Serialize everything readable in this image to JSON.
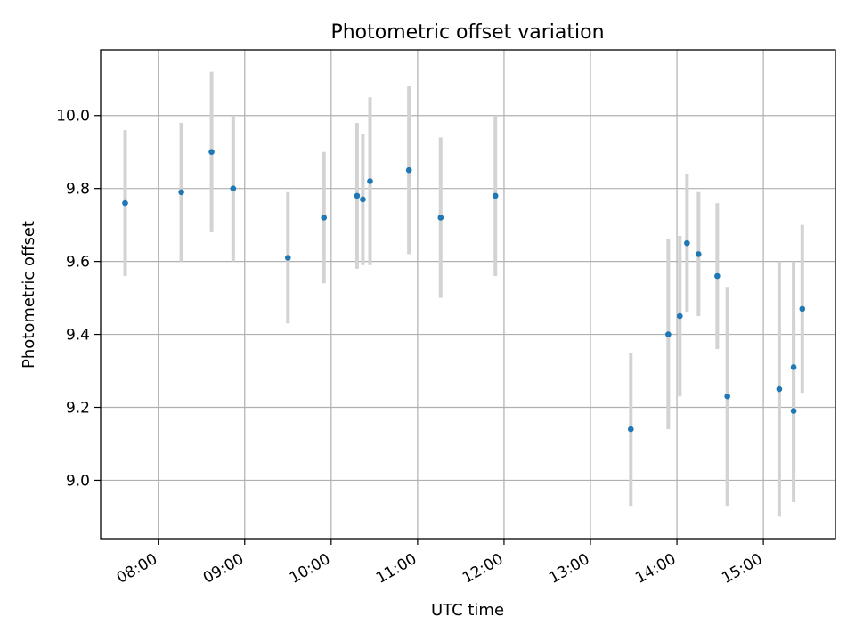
{
  "chart_data": {
    "type": "scatter",
    "title": "Photometric offset variation",
    "xlabel": "UTC time",
    "ylabel": "Photometric offset",
    "xlim": [
      "07:20",
      "15:50"
    ],
    "ylim": [
      8.84,
      10.18
    ],
    "grid": true,
    "x_ticks": [
      "08:00",
      "09:00",
      "10:00",
      "11:00",
      "12:00",
      "13:00",
      "14:00",
      "15:00"
    ],
    "y_ticks": [
      "9.0",
      "9.2",
      "9.4",
      "9.6",
      "9.8",
      "10.0"
    ],
    "point_color": "#1f77b4",
    "errorbar_color": "#d3d3d3",
    "points": [
      {
        "x": "07:37",
        "y": 9.76,
        "err": 0.2
      },
      {
        "x": "08:16",
        "y": 9.79,
        "err": 0.19
      },
      {
        "x": "08:37",
        "y": 9.9,
        "err": 0.22
      },
      {
        "x": "08:52",
        "y": 9.8,
        "err": 0.2
      },
      {
        "x": "09:30",
        "y": 9.61,
        "err": 0.18
      },
      {
        "x": "09:55",
        "y": 9.72,
        "err": 0.18
      },
      {
        "x": "10:18",
        "y": 9.78,
        "err": 0.2
      },
      {
        "x": "10:22",
        "y": 9.77,
        "err": 0.18
      },
      {
        "x": "10:27",
        "y": 9.82,
        "err": 0.23
      },
      {
        "x": "10:54",
        "y": 9.85,
        "err": 0.23
      },
      {
        "x": "11:16",
        "y": 9.72,
        "err": 0.22
      },
      {
        "x": "11:54",
        "y": 9.78,
        "err": 0.22
      },
      {
        "x": "13:28",
        "y": 9.14,
        "err": 0.21
      },
      {
        "x": "13:54",
        "y": 9.4,
        "err": 0.26
      },
      {
        "x": "14:02",
        "y": 9.45,
        "err": 0.22
      },
      {
        "x": "14:07",
        "y": 9.65,
        "err": 0.19
      },
      {
        "x": "14:15",
        "y": 9.62,
        "err": 0.17
      },
      {
        "x": "14:28",
        "y": 9.56,
        "err": 0.2
      },
      {
        "x": "14:35",
        "y": 9.23,
        "err": 0.3
      },
      {
        "x": "15:11",
        "y": 9.25,
        "err": 0.35
      },
      {
        "x": "15:21",
        "y": 9.31,
        "err": 0.29
      },
      {
        "x": "15:21",
        "y": 9.19,
        "err": 0.25
      },
      {
        "x": "15:27",
        "y": 9.47,
        "err": 0.23
      }
    ]
  }
}
